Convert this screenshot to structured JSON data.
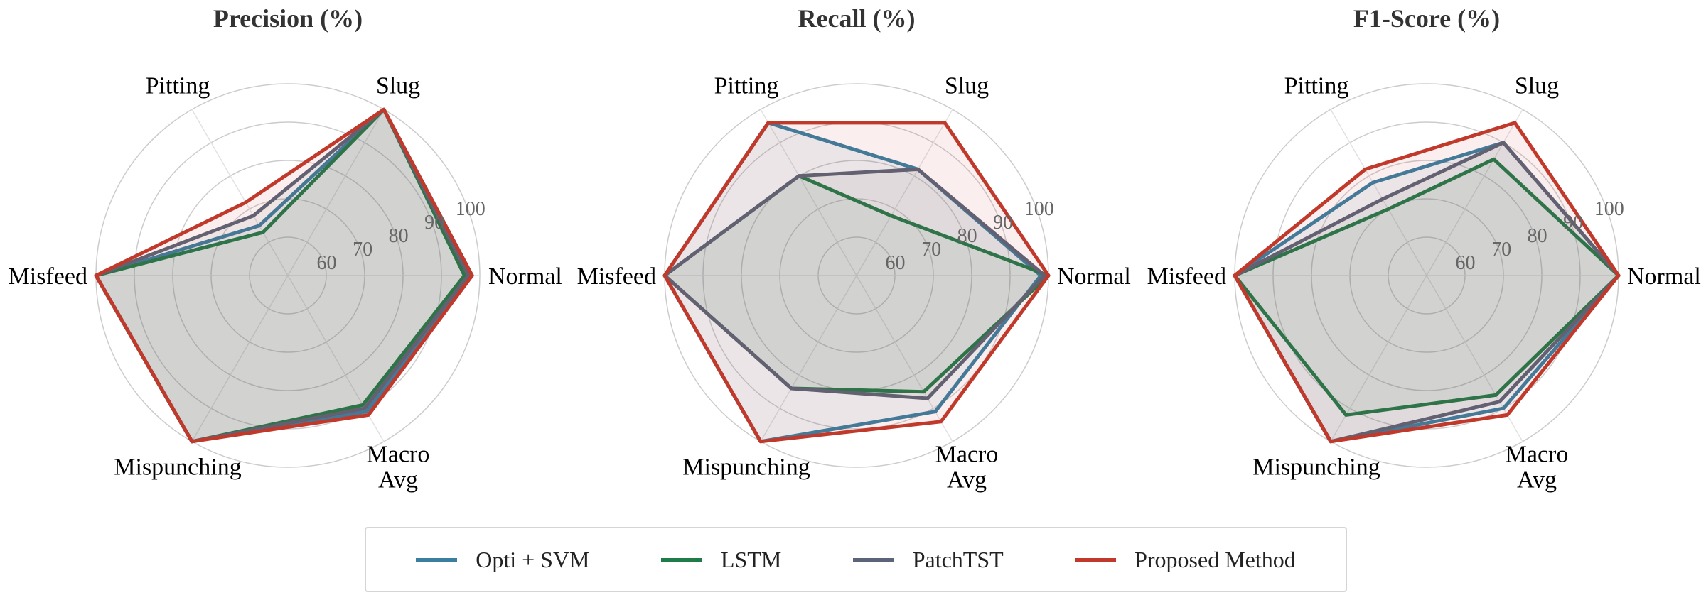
{
  "legend": {
    "items": [
      {
        "label": "Opti + SVM",
        "color": "#3a7fa2"
      },
      {
        "label": "LSTM",
        "color": "#1e7c48"
      },
      {
        "label": "PatchTST",
        "color": "#5b6478"
      },
      {
        "label": "Proposed Method",
        "color": "#c0392b"
      }
    ]
  },
  "chart_data": [
    {
      "type": "radar",
      "title": "Precision (%)",
      "categories": [
        "Normal",
        "Slug",
        "Pitting",
        "Misfeed",
        "Mispunching",
        "Macro\nAvg"
      ],
      "rlim": [
        50,
        100
      ],
      "rticks": [
        60,
        70,
        80,
        90,
        100
      ],
      "grid": true,
      "series": [
        {
          "name": "Opti + SVM",
          "values": [
            98,
            100,
            65,
            100,
            100,
            91
          ]
        },
        {
          "name": "LSTM",
          "values": [
            96,
            100,
            63,
            100,
            100,
            89
          ]
        },
        {
          "name": "PatchTST",
          "values": [
            97,
            100,
            68,
            100,
            100,
            90
          ]
        },
        {
          "name": "Proposed Method",
          "values": [
            98,
            100,
            72,
            100,
            100,
            92
          ]
        }
      ]
    },
    {
      "type": "radar",
      "title": "Recall (%)",
      "categories": [
        "Normal",
        "Slug",
        "Pitting",
        "Misfeed",
        "Mispunching",
        "Macro\nAvg"
      ],
      "rlim": [
        50,
        100
      ],
      "rticks": [
        60,
        70,
        80,
        90,
        100
      ],
      "grid": true,
      "series": [
        {
          "name": "Opti + SVM",
          "values": [
            98,
            82,
            96,
            100,
            100,
            91
          ]
        },
        {
          "name": "LSTM",
          "values": [
            100,
            68,
            80,
            100,
            84,
            85
          ]
        },
        {
          "name": "PatchTST",
          "values": [
            99,
            82,
            80,
            100,
            84,
            87
          ]
        },
        {
          "name": "Proposed Method",
          "values": [
            100,
            96,
            96,
            100,
            100,
            94
          ]
        }
      ]
    },
    {
      "type": "radar",
      "title": "F1-Score (%)",
      "categories": [
        "Normal",
        "Slug",
        "Pitting",
        "Misfeed",
        "Mispunching",
        "Macro\nAvg"
      ],
      "rlim": [
        50,
        100
      ],
      "rticks": [
        60,
        70,
        80,
        90,
        100
      ],
      "grid": true,
      "series": [
        {
          "name": "Opti + SVM",
          "values": [
            100,
            90,
            78,
            100,
            100,
            90
          ]
        },
        {
          "name": "LSTM",
          "values": [
            100,
            85,
            70,
            100,
            92,
            86
          ]
        },
        {
          "name": "PatchTST",
          "values": [
            100,
            90,
            73,
            100,
            100,
            88
          ]
        },
        {
          "name": "Proposed Method",
          "values": [
            100,
            96,
            82,
            100,
            100,
            92
          ]
        }
      ]
    }
  ]
}
